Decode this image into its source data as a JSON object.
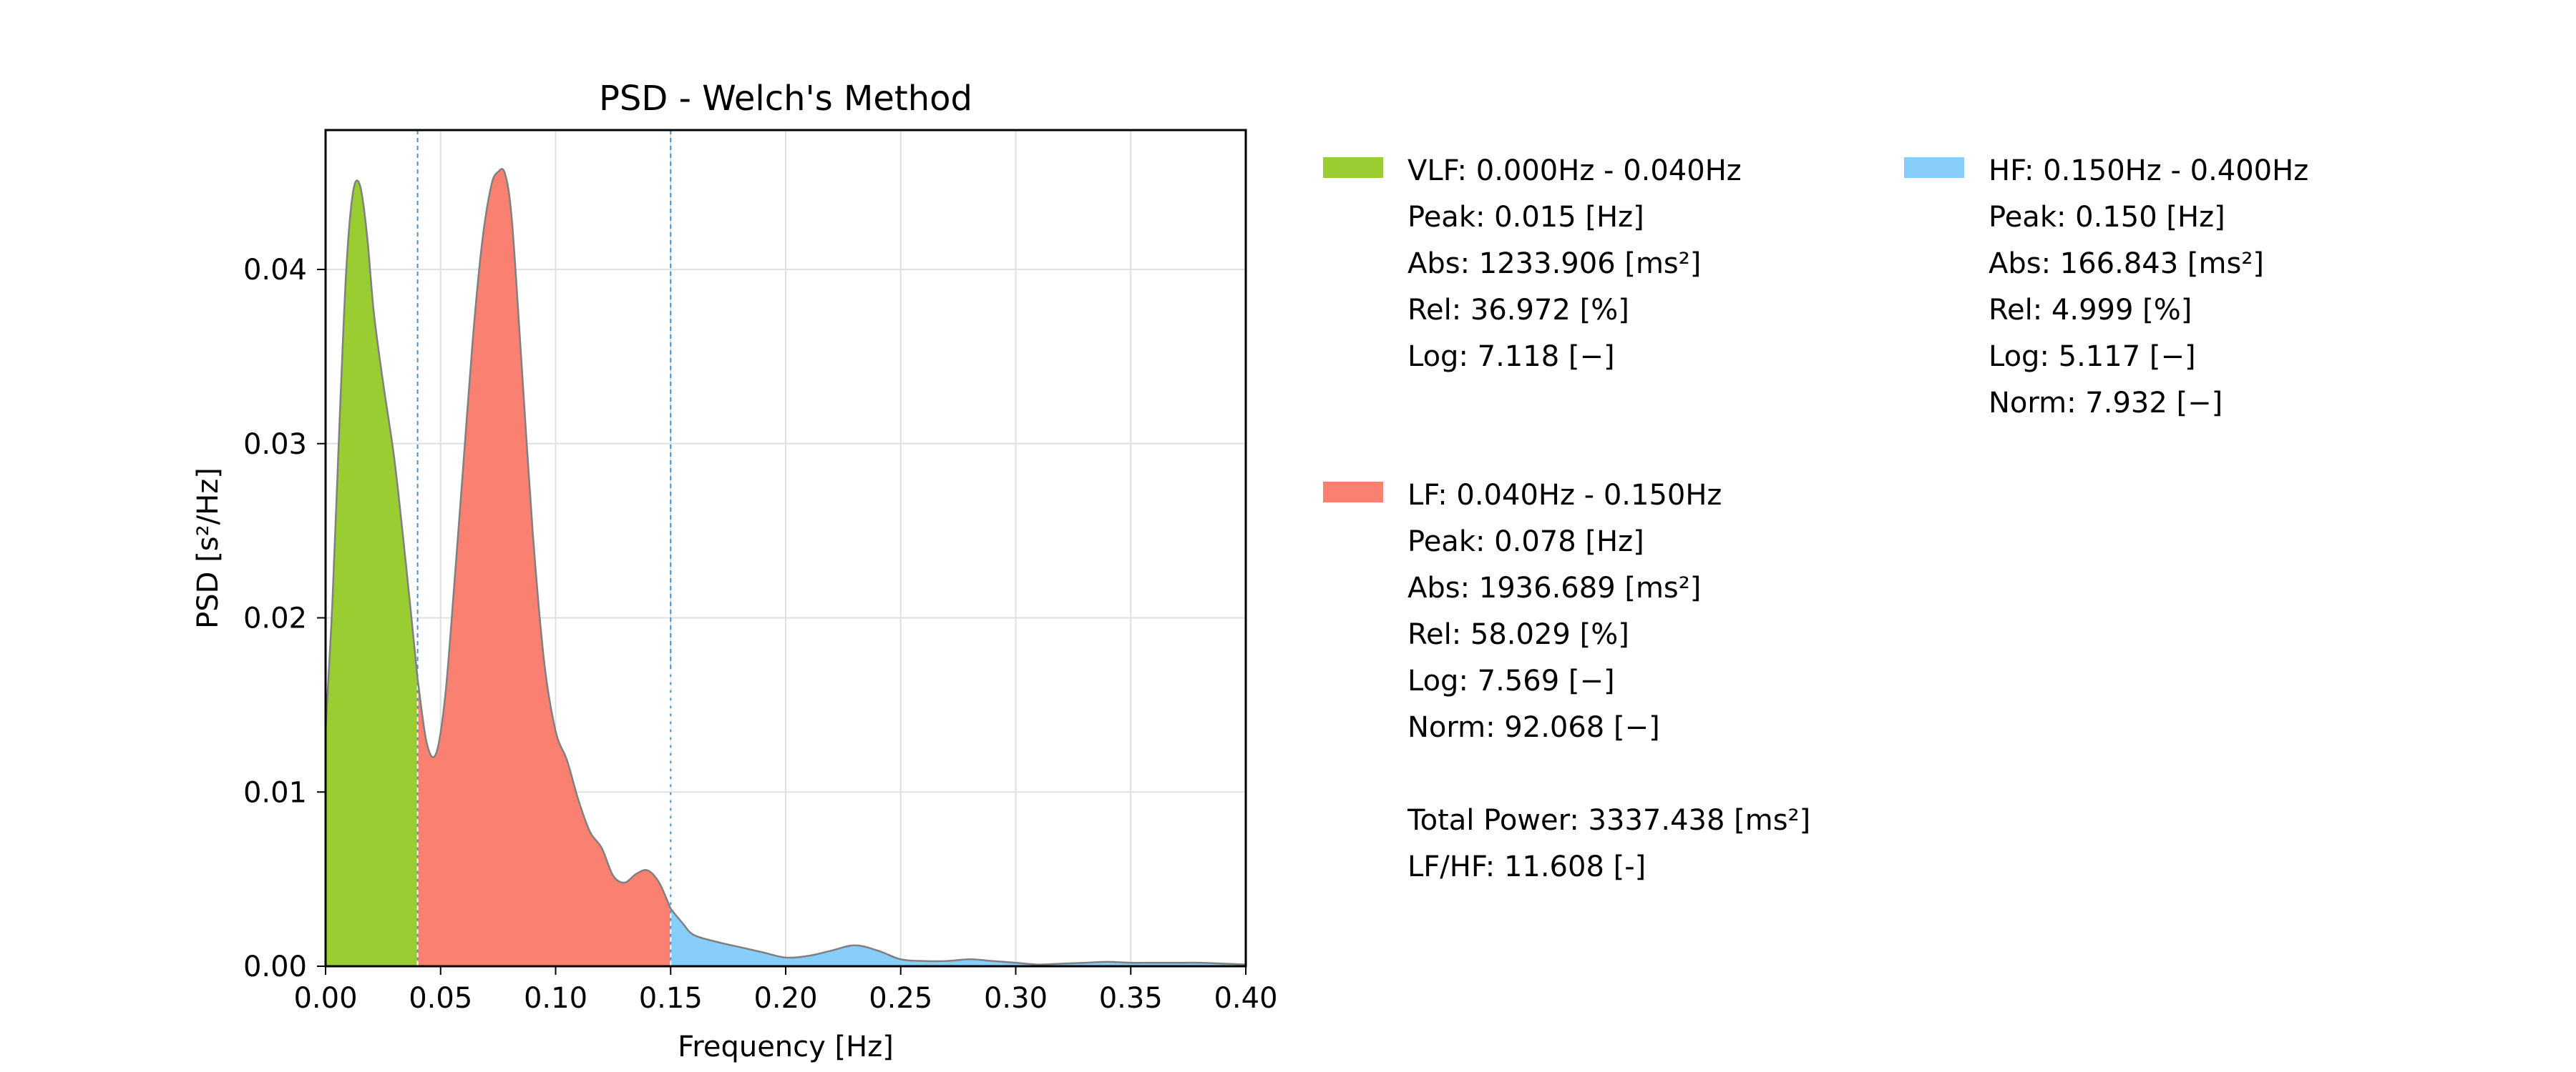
{
  "colors": {
    "vlf": "#9acd32",
    "lf": "#fa8072",
    "hf": "#87cefa",
    "curve": "#808080",
    "divider": "#4a90c8",
    "grid": "#e0e0e0"
  },
  "chart_data": {
    "type": "area",
    "title": "PSD - Welch's Method",
    "xlabel": "Frequency [Hz]",
    "ylabel": "PSD [s²/Hz]",
    "xlim": [
      0,
      0.4
    ],
    "ylim": [
      0,
      0.048
    ],
    "grid": true,
    "x_ticks": [
      "0.00",
      "0.05",
      "0.10",
      "0.15",
      "0.20",
      "0.25",
      "0.30",
      "0.35",
      "0.40"
    ],
    "y_ticks": [
      "0.00",
      "0.01",
      "0.02",
      "0.03",
      "0.04"
    ],
    "band_dividers": [
      0.04,
      0.15
    ],
    "series": [
      {
        "name": "VLF: 0.000Hz - 0.040Hz",
        "color": "#9acd32",
        "x": [
          0.0,
          0.003,
          0.006,
          0.009,
          0.012,
          0.015,
          0.018,
          0.021,
          0.025,
          0.03,
          0.035,
          0.04
        ],
        "y": [
          0.0135,
          0.021,
          0.031,
          0.04,
          0.0445,
          0.0448,
          0.042,
          0.0375,
          0.0335,
          0.029,
          0.023,
          0.0165
        ]
      },
      {
        "name": "LF: 0.040Hz - 0.150Hz",
        "color": "#fa8072",
        "x": [
          0.04,
          0.044,
          0.048,
          0.052,
          0.056,
          0.06,
          0.064,
          0.068,
          0.072,
          0.075,
          0.078,
          0.081,
          0.085,
          0.09,
          0.095,
          0.1,
          0.105,
          0.11,
          0.115,
          0.12,
          0.125,
          0.13,
          0.135,
          0.14,
          0.145,
          0.15
        ],
        "y": [
          0.0165,
          0.0128,
          0.0122,
          0.0155,
          0.022,
          0.029,
          0.036,
          0.0415,
          0.0448,
          0.0456,
          0.0455,
          0.0428,
          0.035,
          0.025,
          0.0175,
          0.0135,
          0.0118,
          0.0095,
          0.0077,
          0.0068,
          0.0052,
          0.0048,
          0.0053,
          0.0055,
          0.0048,
          0.0033
        ]
      },
      {
        "name": "HF: 0.150Hz - 0.400Hz",
        "color": "#87cefa",
        "x": [
          0.15,
          0.155,
          0.16,
          0.17,
          0.18,
          0.19,
          0.2,
          0.21,
          0.22,
          0.23,
          0.24,
          0.25,
          0.26,
          0.27,
          0.28,
          0.29,
          0.3,
          0.31,
          0.32,
          0.33,
          0.34,
          0.35,
          0.36,
          0.37,
          0.38,
          0.39,
          0.4
        ],
        "y": [
          0.0033,
          0.0025,
          0.0018,
          0.0014,
          0.0011,
          0.0008,
          0.0005,
          0.0006,
          0.0009,
          0.0012,
          0.0009,
          0.0004,
          0.0003,
          0.0003,
          0.0004,
          0.0003,
          0.0002,
          0.0001,
          0.00015,
          0.0002,
          0.00025,
          0.0002,
          0.0002,
          0.0002,
          0.0002,
          0.00015,
          0.0001
        ]
      }
    ]
  },
  "legend": {
    "vlf": {
      "header": "VLF: 0.000Hz - 0.040Hz",
      "peak": "Peak: 0.015 [Hz]",
      "abs": "Abs:  1233.906 [ms²]",
      "rel": "Rel:  36.972 [%]",
      "log": "Log:  7.118 [−]"
    },
    "lf": {
      "header": "LF: 0.040Hz - 0.150Hz",
      "peak": "Peak: 0.078 [Hz]",
      "abs": "Abs:  1936.689 [ms²]",
      "rel": "Rel:  58.029 [%]",
      "log": "Log:  7.569 [−]",
      "norm": "Norm: 92.068 [−]"
    },
    "hf": {
      "header": "HF: 0.150Hz - 0.400Hz",
      "peak": "Peak: 0.150 [Hz]",
      "abs": "Abs:  166.843 [ms²]",
      "rel": "Rel:  4.999 [%]",
      "log": "Log:  5.117 [−]",
      "norm": "Norm: 7.932 [−]"
    },
    "total_power": "Total Power: 3337.438 [ms²]",
    "lf_hf": "LF/HF: 11.608 [-]"
  }
}
